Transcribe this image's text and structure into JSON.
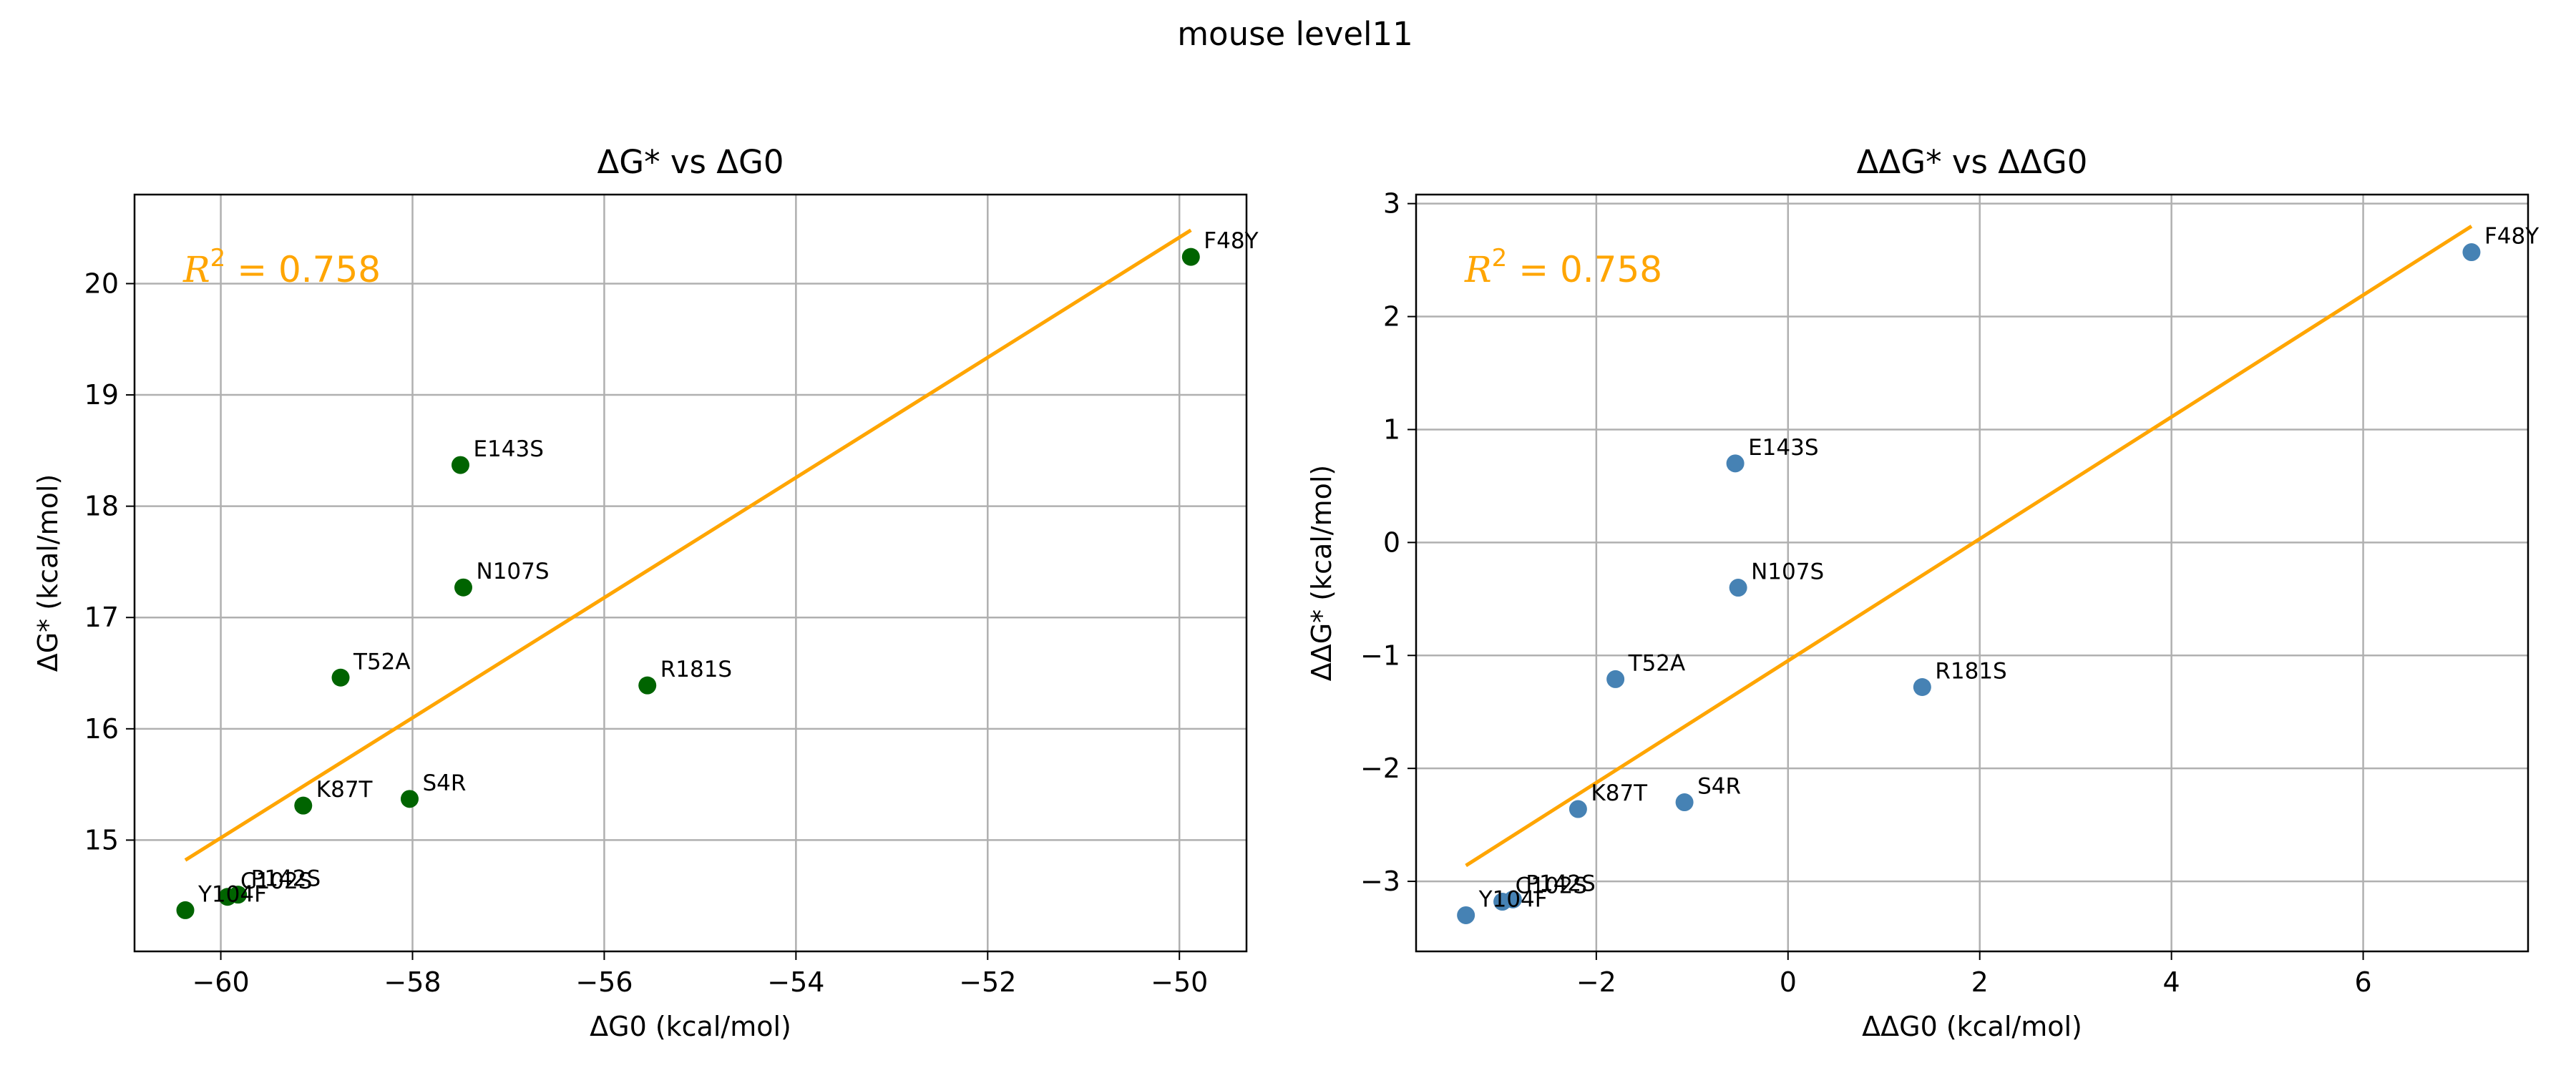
{
  "suptitle": "mouse level11",
  "colors": {
    "fit_line": "#FFA500",
    "left_points": "#006400",
    "right_points": "#4682B4",
    "grid": "#b0b0b0"
  },
  "chart_data": [
    {
      "type": "scatter",
      "title": "ΔG* vs ΔG0",
      "xlabel": "ΔG0 (kcal/mol)",
      "ylabel": "ΔG* (kcal/mol)",
      "xlim": [
        -60.9,
        -49.3
      ],
      "ylim": [
        14.0,
        20.8
      ],
      "xticks": [
        -60,
        -58,
        -56,
        -54,
        -52,
        -50
      ],
      "yticks": [
        15,
        16,
        17,
        18,
        19,
        20
      ],
      "grid": true,
      "annotation": {
        "symbol": "R",
        "power": "2",
        "text": " = 0.758"
      },
      "fit_line": {
        "x": [
          -60.37,
          -49.88
        ],
        "y": [
          14.82,
          20.48
        ]
      },
      "points": [
        {
          "label": "F48Y",
          "x": -49.88,
          "y": 20.24
        },
        {
          "label": "E143S",
          "x": -57.5,
          "y": 18.37
        },
        {
          "label": "N107S",
          "x": -57.47,
          "y": 17.27
        },
        {
          "label": "T52A",
          "x": -58.75,
          "y": 16.46
        },
        {
          "label": "R181S",
          "x": -55.55,
          "y": 16.39
        },
        {
          "label": "K87T",
          "x": -59.14,
          "y": 15.31
        },
        {
          "label": "S4R",
          "x": -58.03,
          "y": 15.37
        },
        {
          "label": "P142S",
          "x": -59.82,
          "y": 14.51
        },
        {
          "label": "C102S",
          "x": -59.93,
          "y": 14.49
        },
        {
          "label": "Y104F",
          "x": -60.37,
          "y": 14.37
        }
      ]
    },
    {
      "type": "scatter",
      "title": "ΔΔG* vs ΔΔG0",
      "xlabel": "ΔΔG0 (kcal/mol)",
      "ylabel": "ΔΔG* (kcal/mol)",
      "xlim": [
        -3.88,
        7.72
      ],
      "ylim": [
        -3.62,
        3.08
      ],
      "xticks": [
        -2,
        0,
        2,
        4,
        6
      ],
      "yticks": [
        -3,
        -2,
        -1,
        0,
        1,
        2,
        3
      ],
      "grid": true,
      "annotation": {
        "symbol": "R",
        "power": "2",
        "text": " = 0.758"
      },
      "fit_line": {
        "x": [
          -3.36,
          7.13
        ],
        "y": [
          -2.86,
          2.8
        ]
      },
      "points": [
        {
          "label": "F48Y",
          "x": 7.13,
          "y": 2.57
        },
        {
          "label": "E143S",
          "x": -0.55,
          "y": 0.7
        },
        {
          "label": "N107S",
          "x": -0.52,
          "y": -0.4
        },
        {
          "label": "T52A",
          "x": -1.8,
          "y": -1.21
        },
        {
          "label": "R181S",
          "x": 1.4,
          "y": -1.28
        },
        {
          "label": "K87T",
          "x": -2.19,
          "y": -2.36
        },
        {
          "label": "S4R",
          "x": -1.08,
          "y": -2.3
        },
        {
          "label": "P142S",
          "x": -2.87,
          "y": -3.16
        },
        {
          "label": "C102S",
          "x": -2.98,
          "y": -3.18
        },
        {
          "label": "Y104F",
          "x": -3.36,
          "y": -3.3
        }
      ]
    }
  ]
}
